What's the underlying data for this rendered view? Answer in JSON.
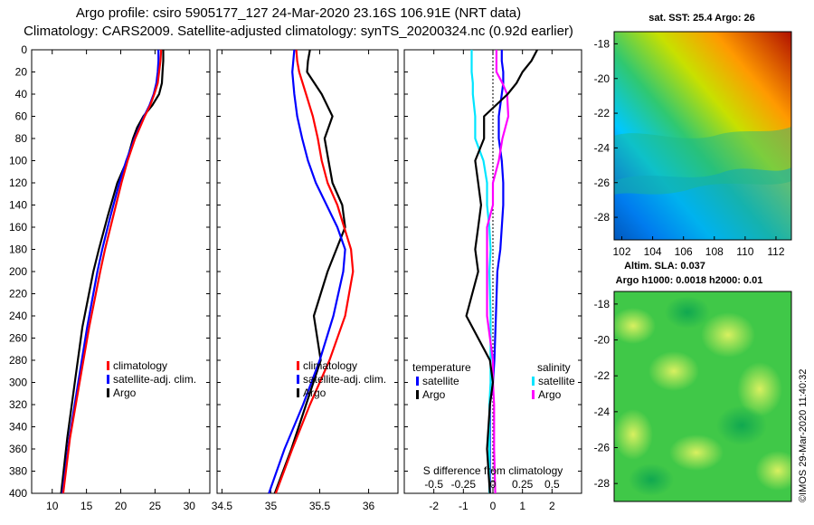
{
  "header": {
    "line1": "Argo profile: csiro 5905177_127 24-Mar-2020 23.16S 106.91E (NRT data)",
    "line2": "Climatology: CARS2009. Satellite-adjusted climatology: synTS_20200324.nc (0.92d earlier)"
  },
  "depth_ticks": [
    "0",
    "20",
    "40",
    "60",
    "80",
    "100",
    "120",
    "140",
    "160",
    "180",
    "200",
    "220",
    "240",
    "260",
    "280",
    "300",
    "320",
    "340",
    "360",
    "380",
    "400"
  ],
  "sst_map": {
    "title": "sat. SST: 25.4 Argo: 26",
    "lat_ticks": [
      "-18",
      "-20",
      "-22",
      "-24",
      "-26",
      "-28"
    ],
    "lon_ticks": [
      "102",
      "104",
      "106",
      "108",
      "110",
      "112"
    ]
  },
  "sla_map": {
    "title1": "Altim. SLA: 0.037",
    "title2": "Argo h1000: 0.0018 h2000: 0.01",
    "lat_ticks": [
      "-18",
      "-20",
      "-22",
      "-24",
      "-26",
      "-28"
    ]
  },
  "credit": "©IMOS 29-Mar-2020 11:40:32",
  "colors": {
    "argo": "#000000",
    "climatology": "#ff0000",
    "satellite_adj": "#0000ff",
    "salinity_sat": "#00e5ff",
    "salinity_argo": "#ff00ff"
  },
  "chart_data": [
    {
      "type": "line",
      "name": "temperature",
      "xlim": [
        7,
        33
      ],
      "ylim": [
        0,
        400
      ],
      "x_ticks": [
        "10",
        "15",
        "20",
        "25",
        "30"
      ],
      "y_axis": "depth (reversed)",
      "depth": [
        0,
        10,
        20,
        30,
        40,
        50,
        60,
        70,
        80,
        100,
        120,
        150,
        180,
        200,
        250,
        300,
        350,
        400
      ],
      "series": [
        {
          "name": "climatology",
          "values": [
            25.9,
            25.8,
            25.6,
            25.4,
            24.9,
            24.3,
            23.5,
            22.8,
            22.1,
            21.0,
            20.1,
            18.9,
            17.7,
            17.0,
            15.4,
            14.0,
            12.6,
            11.6
          ]
        },
        {
          "name": "satellite-adj. clim.",
          "values": [
            25.5,
            25.5,
            25.4,
            25.2,
            24.8,
            24.2,
            23.4,
            22.7,
            22.0,
            20.8,
            19.8,
            18.5,
            17.3,
            16.6,
            15.1,
            13.8,
            12.5,
            11.5
          ]
        },
        {
          "name": "Argo",
          "values": [
            26.2,
            26.2,
            26.1,
            26.0,
            25.6,
            24.6,
            23.3,
            22.4,
            21.8,
            20.9,
            19.5,
            18.1,
            16.8,
            16.0,
            14.4,
            13.3,
            12.2,
            11.3
          ]
        }
      ],
      "legend": [
        "climatology",
        "satellite-adj. clim.",
        "Argo"
      ]
    },
    {
      "type": "line",
      "name": "salinity",
      "xlim": [
        34.45,
        36.3
      ],
      "ylim": [
        0,
        400
      ],
      "x_ticks": [
        "34.5",
        "35",
        "35.5",
        "36"
      ],
      "y_axis": "depth (reversed)",
      "depth": [
        0,
        10,
        20,
        40,
        60,
        80,
        100,
        120,
        140,
        160,
        180,
        200,
        240,
        280,
        320,
        360,
        400
      ],
      "series": [
        {
          "name": "climatology",
          "values": [
            35.26,
            35.27,
            35.29,
            35.36,
            35.43,
            35.48,
            35.52,
            35.58,
            35.68,
            35.75,
            35.82,
            35.84,
            35.76,
            35.6,
            35.4,
            35.22,
            35.05
          ]
        },
        {
          "name": "satellite-adj. clim.",
          "values": [
            35.24,
            35.23,
            35.22,
            35.24,
            35.27,
            35.32,
            35.38,
            35.46,
            35.57,
            35.68,
            35.76,
            35.74,
            35.64,
            35.5,
            35.33,
            35.14,
            34.98
          ]
        },
        {
          "name": "Argo",
          "values": [
            35.4,
            35.38,
            35.37,
            35.52,
            35.63,
            35.55,
            35.59,
            35.63,
            35.73,
            35.76,
            35.67,
            35.58,
            35.44,
            35.51,
            35.36,
            35.21,
            35.04
          ]
        }
      ],
      "legend": [
        "climatology",
        "satellite-adj. clim.",
        "Argo"
      ]
    },
    {
      "type": "line",
      "name": "difference from climatology",
      "xlim": [
        -3,
        3
      ],
      "ylim": [
        0,
        400
      ],
      "x_ticks": [
        "-2",
        "-1",
        "0",
        "1",
        "2"
      ],
      "x2_ticks": [
        "-0.5",
        "-0.25",
        "0",
        "0.25",
        "0.5"
      ],
      "x2_label": "S difference from climatology",
      "y_axis": "depth (reversed)",
      "depth": [
        0,
        10,
        20,
        30,
        40,
        60,
        80,
        100,
        120,
        140,
        160,
        180,
        200,
        240,
        280,
        300,
        320,
        360,
        400
      ],
      "series": [
        {
          "name": "temperature satellite",
          "values": [
            0.3,
            0.3,
            0.35,
            0.35,
            0.3,
            0.2,
            0.2,
            0.3,
            0.35,
            0.35,
            0.3,
            0.25,
            0.15,
            0.1,
            0.05,
            0.0,
            -0.1,
            -0.1,
            -0.1
          ]
        },
        {
          "name": "temperature Argo",
          "values": [
            1.5,
            1.3,
            1.0,
            0.8,
            0.5,
            -0.3,
            -0.3,
            -0.6,
            -0.5,
            -0.4,
            -0.5,
            -0.6,
            -0.5,
            -0.9,
            -0.1,
            0.0,
            -0.1,
            -0.2,
            -0.1
          ]
        },
        {
          "name": "salinity satellite",
          "values": [
            -0.18,
            -0.18,
            -0.18,
            -0.17,
            -0.17,
            -0.15,
            -0.15,
            -0.08,
            -0.05,
            -0.05,
            -0.03,
            -0.02,
            -0.03,
            -0.02,
            -0.02,
            -0.02,
            -0.03,
            -0.03,
            -0.03
          ]
        },
        {
          "name": "salinity Argo",
          "values": [
            0.03,
            0.03,
            0.03,
            0.08,
            0.12,
            0.13,
            0.08,
            0.05,
            0.0,
            0.0,
            -0.05,
            -0.05,
            -0.05,
            -0.05,
            0.0,
            0.0,
            0.01,
            0.01,
            0.02
          ]
        }
      ],
      "legend_temperature_title": "temperature",
      "legend_salinity_title": "salinity",
      "legend_temperature": [
        "satellite",
        "Argo"
      ],
      "legend_salinity": [
        "satellite",
        "Argo"
      ]
    }
  ]
}
